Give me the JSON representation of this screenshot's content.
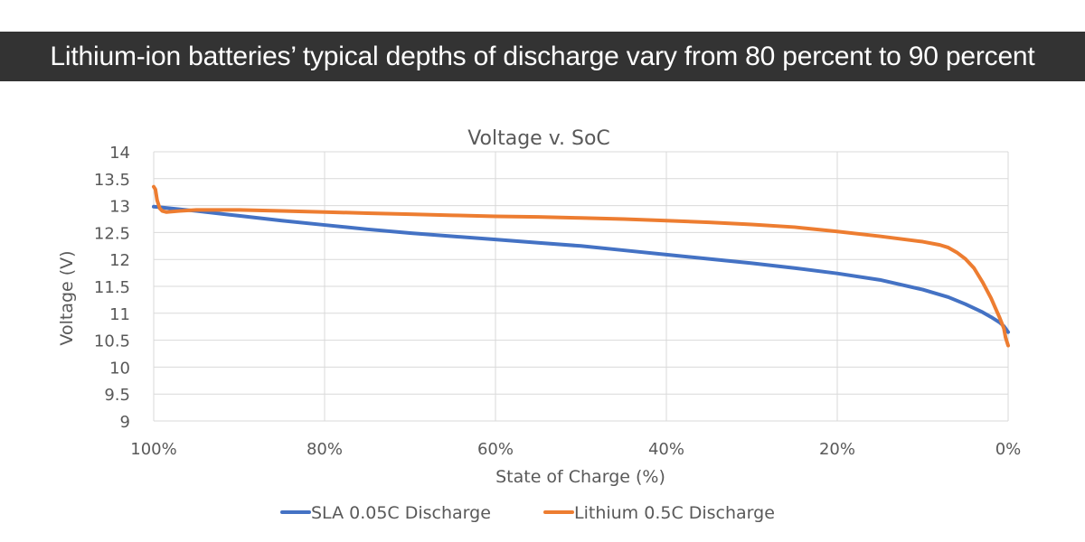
{
  "banner": {
    "title": "Lithium-ion batteries’ typical depths of discharge vary from 80 percent to 90 percent"
  },
  "colors": {
    "banner_bg": "#333333",
    "banner_text": "#ffffff",
    "sla": "#4472C4",
    "lithium": "#ED7D31",
    "grid": "#D9D9D9",
    "text": "#595959"
  },
  "chart_data": {
    "type": "line",
    "title": "Voltage v. SoC",
    "xlabel": "State of Charge (%)",
    "ylabel": "Voltage (V)",
    "xlim": [
      100,
      0
    ],
    "ylim": [
      9,
      14
    ],
    "x_ticks": [
      100,
      80,
      60,
      40,
      20,
      0
    ],
    "x_tick_labels": [
      "100%",
      "80%",
      "60%",
      "40%",
      "20%",
      "0%"
    ],
    "y_ticks": [
      9,
      9.5,
      10,
      10.5,
      11,
      11.5,
      12,
      12.5,
      13,
      13.5,
      14
    ],
    "y_tick_labels": [
      "9",
      "9.5",
      "10",
      "10.5",
      "11",
      "11.5",
      "12",
      "12.5",
      "13",
      "13.5",
      "14"
    ],
    "grid": true,
    "legend": "bottom",
    "series": [
      {
        "name": "SLA 0.05C Discharge",
        "color": "#4472C4",
        "x": [
          100,
          95,
          90,
          85,
          80,
          75,
          70,
          65,
          60,
          55,
          50,
          45,
          40,
          35,
          30,
          25,
          20,
          15,
          10,
          7,
          5,
          3,
          2,
          1,
          0.5,
          0
        ],
        "y": [
          12.98,
          12.9,
          12.81,
          12.72,
          12.64,
          12.56,
          12.49,
          12.43,
          12.37,
          12.31,
          12.25,
          12.17,
          12.09,
          12.01,
          11.93,
          11.84,
          11.74,
          11.62,
          11.44,
          11.3,
          11.17,
          11.02,
          10.93,
          10.83,
          10.76,
          10.65
        ]
      },
      {
        "name": "Lithium 0.5C Discharge",
        "color": "#ED7D31",
        "x": [
          100,
          99.8,
          99.6,
          99.3,
          99,
          98.5,
          97,
          95,
          90,
          85,
          80,
          75,
          70,
          65,
          60,
          55,
          50,
          45,
          40,
          35,
          30,
          25,
          20,
          15,
          10,
          8,
          7,
          6,
          5,
          4,
          3,
          2,
          1.5,
          1,
          0.5,
          0.3,
          0
        ],
        "y": [
          13.35,
          13.3,
          13.1,
          12.95,
          12.9,
          12.88,
          12.9,
          12.92,
          12.92,
          12.9,
          12.88,
          12.86,
          12.84,
          12.82,
          12.8,
          12.79,
          12.77,
          12.75,
          12.72,
          12.69,
          12.65,
          12.6,
          12.52,
          12.43,
          12.33,
          12.27,
          12.22,
          12.13,
          12.01,
          11.84,
          11.58,
          11.28,
          11.1,
          10.92,
          10.72,
          10.55,
          10.4
        ]
      }
    ]
  }
}
